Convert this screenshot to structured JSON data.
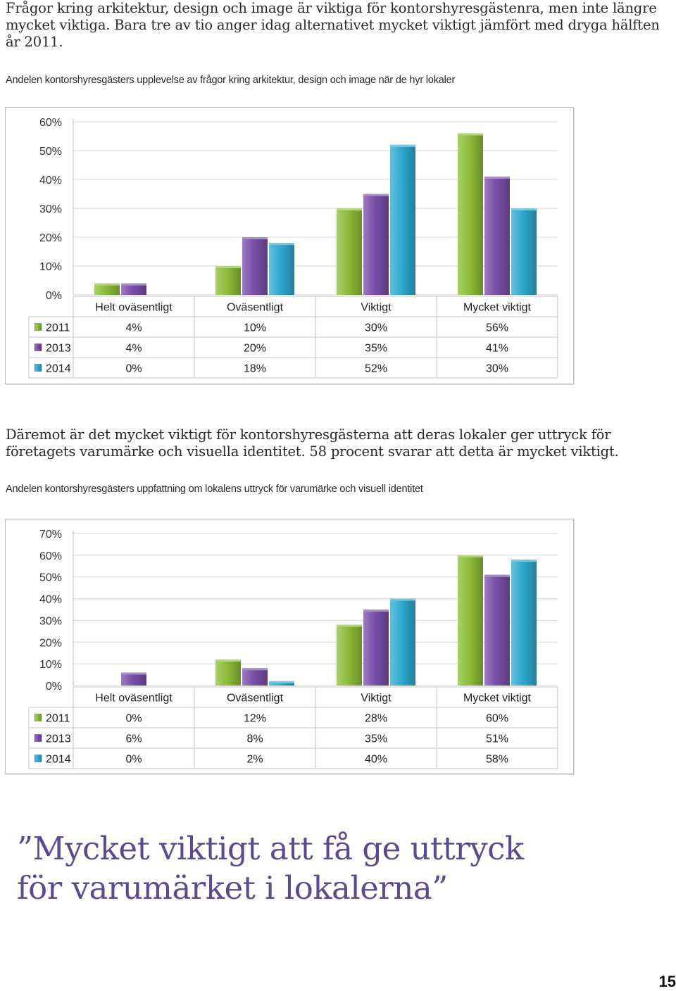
{
  "intro": {
    "text": "Frågor kring arkitektur, design och image är viktiga för kontorshyresgästenra, men inte längre mycket viktiga. Bara tre av tio anger idag alternativet mycket viktigt jämfört med dryga hälften år 2011."
  },
  "chart1_caption": "Andelen kontorshyresgästers upplevelse av frågor kring arkitektur, design och image när de hyr lokaler",
  "middle": {
    "text": "Däremot är det mycket viktigt för kontorshyresgästerna att deras lokaler ger uttryck för företagets varumärke och visuella identitet. 58 procent svarar att detta är mycket viktigt."
  },
  "chart2_caption": "Andelen kontorshyresgästers uppfattning om lokalens uttryck för varumärke och visuell identitet",
  "quote": {
    "line1": "”Mycket viktigt att få ge uttryck",
    "line2": "för varumärket i lokalerna”"
  },
  "page_number": "15",
  "colors": {
    "series_2011": "#8dbd3a",
    "series_2013": "#7a4fa8",
    "series_2014": "#2fa9cf",
    "gridline": "#d6d6d6",
    "quote": "#5d4a8e"
  },
  "chart_data": [
    {
      "type": "bar",
      "categories": [
        "Helt oväsentligt",
        "Oväsentligt",
        "Viktigt",
        "Mycket viktigt"
      ],
      "series": [
        {
          "name": "2011",
          "values": [
            4,
            10,
            30,
            56
          ],
          "labels": [
            "4%",
            "10%",
            "30%",
            "56%"
          ]
        },
        {
          "name": "2013",
          "values": [
            4,
            20,
            35,
            41
          ],
          "labels": [
            "4%",
            "20%",
            "35%",
            "41%"
          ]
        },
        {
          "name": "2014",
          "values": [
            0,
            18,
            52,
            30
          ],
          "labels": [
            "0%",
            "18%",
            "52%",
            "30%"
          ]
        }
      ],
      "yticks": [
        "0%",
        "10%",
        "20%",
        "30%",
        "40%",
        "50%",
        "60%"
      ],
      "ylim": [
        0,
        60
      ],
      "grid": true,
      "legend": "data-table-below"
    },
    {
      "type": "bar",
      "categories": [
        "Helt oväsentligt",
        "Oväsentligt",
        "Viktigt",
        "Mycket viktigt"
      ],
      "series": [
        {
          "name": "2011",
          "values": [
            0,
            12,
            28,
            60
          ],
          "labels": [
            "0%",
            "12%",
            "28%",
            "60%"
          ]
        },
        {
          "name": "2013",
          "values": [
            6,
            8,
            35,
            51
          ],
          "labels": [
            "6%",
            "8%",
            "35%",
            "51%"
          ]
        },
        {
          "name": "2014",
          "values": [
            0,
            2,
            40,
            58
          ],
          "labels": [
            "0%",
            "2%",
            "40%",
            "58%"
          ]
        }
      ],
      "yticks": [
        "0%",
        "10%",
        "20%",
        "30%",
        "40%",
        "50%",
        "60%",
        "70%"
      ],
      "ylim": [
        0,
        70
      ],
      "grid": true,
      "legend": "data-table-below"
    }
  ]
}
